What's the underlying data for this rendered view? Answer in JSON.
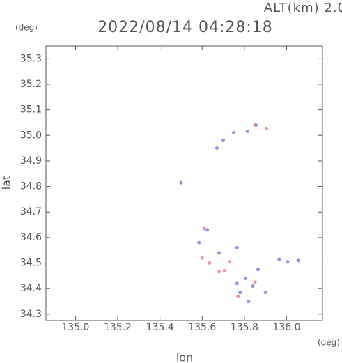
{
  "chart_data": {
    "type": "scatter",
    "title": "2022/08/14 04:28:18",
    "subtitle": "ALT(km) 2.0",
    "y_unit": "(deg)",
    "x_unit": "(deg)",
    "x_label": "lon",
    "y_label": "lat",
    "xlim": [
      134.86,
      136.17
    ],
    "ylim": [
      34.275,
      35.35
    ],
    "xticks": [
      {
        "value": 135,
        "label": "135.0"
      },
      135.2,
      135.4,
      135.6,
      135.8,
      {
        "value": 136,
        "label": "136.0"
      }
    ],
    "yticks": [
      34.3,
      34.4,
      34.5,
      34.6,
      34.7,
      34.8,
      34.9,
      {
        "value": 35,
        "label": "35.0"
      },
      35.1,
      35.2,
      35.3
    ],
    "series": [
      {
        "color": "#6d74e0",
        "x": [
          135.67,
          135.7,
          135.75,
          135.815,
          135.855,
          135.5,
          135.625,
          135.585,
          135.765,
          135.68,
          135.865,
          135.805,
          135.765,
          135.78,
          135.9,
          135.965,
          136.005,
          136.055,
          135.84,
          135.82
        ],
        "y": [
          34.95,
          34.98,
          35.01,
          35.016,
          35.04,
          34.815,
          34.63,
          34.58,
          34.56,
          34.54,
          34.475,
          34.44,
          34.42,
          34.385,
          34.385,
          34.515,
          34.505,
          34.51,
          34.41,
          34.35
        ]
      },
      {
        "color": "#e87a8c",
        "x": [
          135.905,
          135.85,
          135.61,
          135.6,
          135.635,
          135.68,
          135.705,
          135.77,
          135.85,
          135.73
        ],
        "y": [
          35.027,
          35.04,
          34.635,
          34.52,
          34.5,
          34.466,
          34.47,
          34.37,
          34.425,
          34.505
        ]
      }
    ]
  }
}
